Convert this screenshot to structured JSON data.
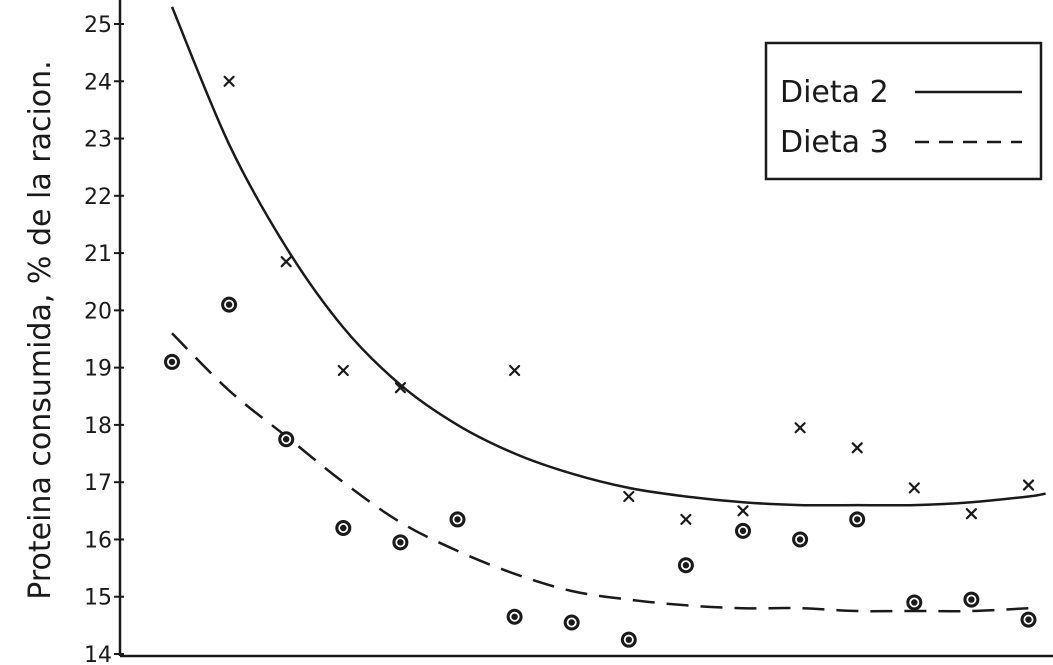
{
  "chart_data": {
    "type": "scatter",
    "title": "",
    "xlabel": "",
    "ylabel": "Proteina consumida, % de la racion.",
    "ylim": [
      14,
      25.3
    ],
    "y_ticks": [
      "14",
      "15",
      "16",
      "17",
      "18",
      "19",
      "20",
      "21",
      "22",
      "23",
      "24",
      "25"
    ],
    "x_ticks": [],
    "xlim": [
      0,
      16
    ],
    "grid": false,
    "legend_position": "top-right",
    "series": [
      {
        "name": "Dieta 2",
        "marker": "x",
        "line_style": "solid",
        "points": [
          {
            "x": 1,
            "y": 24.0
          },
          {
            "x": 2,
            "y": 20.85
          },
          {
            "x": 3,
            "y": 18.95
          },
          {
            "x": 4,
            "y": 18.65
          },
          {
            "x": 6,
            "y": 18.95
          },
          {
            "x": 8,
            "y": 16.75
          },
          {
            "x": 9,
            "y": 16.35
          },
          {
            "x": 10,
            "y": 16.5
          },
          {
            "x": 11,
            "y": 17.95
          },
          {
            "x": 12,
            "y": 17.6
          },
          {
            "x": 13,
            "y": 16.9
          },
          {
            "x": 14,
            "y": 16.45
          },
          {
            "x": 15,
            "y": 16.95
          }
        ],
        "fit": [
          {
            "x": 0,
            "y": 25.3
          },
          {
            "x": 1,
            "y": 22.9
          },
          {
            "x": 2,
            "y": 21.1
          },
          {
            "x": 3,
            "y": 19.7
          },
          {
            "x": 4,
            "y": 18.7
          },
          {
            "x": 5,
            "y": 18.0
          },
          {
            "x": 6,
            "y": 17.5
          },
          {
            "x": 7,
            "y": 17.15
          },
          {
            "x": 8,
            "y": 16.9
          },
          {
            "x": 9,
            "y": 16.75
          },
          {
            "x": 10,
            "y": 16.65
          },
          {
            "x": 11,
            "y": 16.6
          },
          {
            "x": 12,
            "y": 16.6
          },
          {
            "x": 13,
            "y": 16.6
          },
          {
            "x": 14,
            "y": 16.65
          },
          {
            "x": 15,
            "y": 16.75
          },
          {
            "x": 15.3,
            "y": 16.8
          }
        ]
      },
      {
        "name": "Dieta 3",
        "marker": "circle",
        "line_style": "dashed",
        "points": [
          {
            "x": 0,
            "y": 19.1
          },
          {
            "x": 1,
            "y": 20.1
          },
          {
            "x": 2,
            "y": 17.75
          },
          {
            "x": 3,
            "y": 16.2
          },
          {
            "x": 4,
            "y": 15.95
          },
          {
            "x": 5,
            "y": 16.35
          },
          {
            "x": 6,
            "y": 14.65
          },
          {
            "x": 7,
            "y": 14.55
          },
          {
            "x": 8,
            "y": 14.25
          },
          {
            "x": 9,
            "y": 15.55
          },
          {
            "x": 10,
            "y": 16.15
          },
          {
            "x": 11,
            "y": 16.0
          },
          {
            "x": 12,
            "y": 16.35
          },
          {
            "x": 13,
            "y": 14.9
          },
          {
            "x": 14,
            "y": 14.95
          },
          {
            "x": 15,
            "y": 14.6
          }
        ],
        "fit": [
          {
            "x": 0,
            "y": 19.6
          },
          {
            "x": 1,
            "y": 18.6
          },
          {
            "x": 2,
            "y": 17.8
          },
          {
            "x": 3,
            "y": 17.0
          },
          {
            "x": 4,
            "y": 16.3
          },
          {
            "x": 5,
            "y": 15.8
          },
          {
            "x": 6,
            "y": 15.4
          },
          {
            "x": 7,
            "y": 15.1
          },
          {
            "x": 8,
            "y": 14.95
          },
          {
            "x": 9,
            "y": 14.85
          },
          {
            "x": 10,
            "y": 14.8
          },
          {
            "x": 11,
            "y": 14.8
          },
          {
            "x": 12,
            "y": 14.75
          },
          {
            "x": 13,
            "y": 14.75
          },
          {
            "x": 14,
            "y": 14.75
          },
          {
            "x": 15,
            "y": 14.8
          }
        ]
      }
    ]
  }
}
